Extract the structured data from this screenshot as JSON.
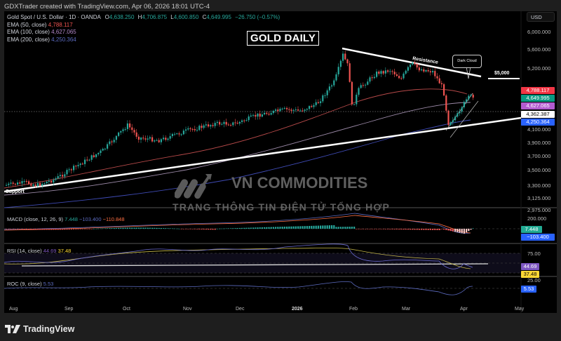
{
  "header": {
    "credit": "GDXTrader created with TradingView.com, Apr 06, 2026 18:01 UTC-4"
  },
  "symbol": {
    "name": "Gold Spot / U.S. Dollar · 1D · OANDA",
    "open_label": "O",
    "open": "4,638.250",
    "high_label": "H",
    "high": "4,706.875",
    "low_label": "L",
    "low": "4,600.850",
    "close_label": "C",
    "close": "4,649.995",
    "change": "−26.750 (−0.57%)"
  },
  "indicators": {
    "ema50": {
      "label": "EMA (50, close)",
      "value": "4,788.117",
      "color": "#ef5350"
    },
    "ema100": {
      "label": "EMA (100, close)",
      "value": "4,627.065",
      "color": "#b388c9"
    },
    "ema200": {
      "label": "EMA (200, close)",
      "value": "4,250.364",
      "color": "#5c6bc0"
    }
  },
  "title": "GOLD DAILY",
  "currency_button": "USD",
  "annotations": {
    "resistance": "Resistance",
    "support": "Support",
    "dark_cloud": "Dark Cloud",
    "level_5000": "$5,000"
  },
  "watermark": {
    "brand": "VN COMMODITIES",
    "tagline": "TRANG THÔNG TIN ĐIỆN TỬ TỔNG HỢP"
  },
  "price_axis": {
    "labels": [
      "6,000.000",
      "5,600.000",
      "5,200.000",
      "4,100.000",
      "3,900.000",
      "3,700.000",
      "3,500.000",
      "3,300.000",
      "3,125.000",
      "2,975.000"
    ],
    "tags": [
      {
        "value": "4,788.117",
        "color": "#f23645"
      },
      {
        "value": "4,649.995",
        "color": "#089981"
      },
      {
        "value": "4,627.065",
        "color": "#b35bd0"
      },
      {
        "value": "4,362.387",
        "color": "#ffffff"
      },
      {
        "value": "4,250.364",
        "color": "#2962ff"
      }
    ]
  },
  "macd": {
    "label": "MACD (close, 12, 26, 9)",
    "hist": "7.448",
    "macd": "−103.400",
    "signal": "−110.848",
    "axis_top": "200.000",
    "tags": [
      {
        "value": "7.448",
        "color": "#22ab94"
      },
      {
        "value": "−103.400",
        "color": "#2962ff"
      }
    ]
  },
  "rsi": {
    "label": "RSI (14, close)",
    "value": "44.69",
    "ma": "37.48",
    "axis": [
      "75.00",
      "25.00"
    ],
    "tags": [
      {
        "value": "44.69",
        "color": "#7e57c2"
      },
      {
        "value": "37.48",
        "color": "#fdd835"
      }
    ]
  },
  "roc": {
    "label": "ROC (9, close)",
    "value": "5.53",
    "tag": {
      "value": "5.53",
      "color": "#2962ff"
    }
  },
  "time_axis": [
    "Aug",
    "Sep",
    "Oct",
    "Nov",
    "Dec",
    "2026",
    "Feb",
    "Mar",
    "Apr",
    "May"
  ],
  "footer": {
    "brand": "TradingView"
  },
  "chart_data": {
    "type": "candlestick",
    "title": "GOLD DAILY — Gold Spot / U.S. Dollar · 1D · OANDA",
    "xlabel": "",
    "ylabel": "USD",
    "x_ticks": [
      "Aug",
      "Sep",
      "Oct",
      "Nov",
      "Dec",
      "2026",
      "Feb",
      "Mar",
      "Apr",
      "May"
    ],
    "y_ticks": [
      2975,
      3125,
      3300,
      3500,
      3700,
      3900,
      4100,
      5200,
      5600,
      6000
    ],
    "ylim": [
      2900,
      6100
    ],
    "last_bar": {
      "open": 4638.25,
      "high": 4706.875,
      "low": 4600.85,
      "close": 4649.995,
      "change": -26.75,
      "change_pct": -0.57
    },
    "approx_monthly_close": {
      "categories": [
        "Aug",
        "Sep",
        "Oct",
        "Nov",
        "Dec",
        "Jan",
        "Feb",
        "Mar",
        "Apr"
      ],
      "values": [
        3350,
        3650,
        4000,
        4050,
        4300,
        5000,
        5200,
        4600,
        4650
      ]
    },
    "series": [
      {
        "name": "EMA (50, close)",
        "last": 4788.117
      },
      {
        "name": "EMA (100, close)",
        "last": 4627.065
      },
      {
        "name": "EMA (200, close)",
        "last": 4250.364
      }
    ],
    "lines": [
      {
        "name": "Support",
        "from": [
          "Aug",
          3280
        ],
        "to": [
          "Apr",
          4350
        ]
      },
      {
        "name": "Resistance",
        "from": [
          "Jan-end",
          5550
        ],
        "to": [
          "Apr",
          5000
        ]
      },
      {
        "name": "$5,000 level",
        "value": 5000
      }
    ],
    "horizontal_dotted": 4362.387,
    "subpanes": [
      {
        "name": "MACD (close, 12, 26, 9)",
        "hist": 7.448,
        "macd": -103.4,
        "signal": -110.848
      },
      {
        "name": "RSI (14, close)",
        "value": 44.69,
        "ma": 37.48,
        "bands": [
          25,
          50,
          75
        ]
      },
      {
        "name": "ROC (9, close)",
        "value": 5.53
      }
    ],
    "grid": false,
    "legend_position": "top-left"
  }
}
